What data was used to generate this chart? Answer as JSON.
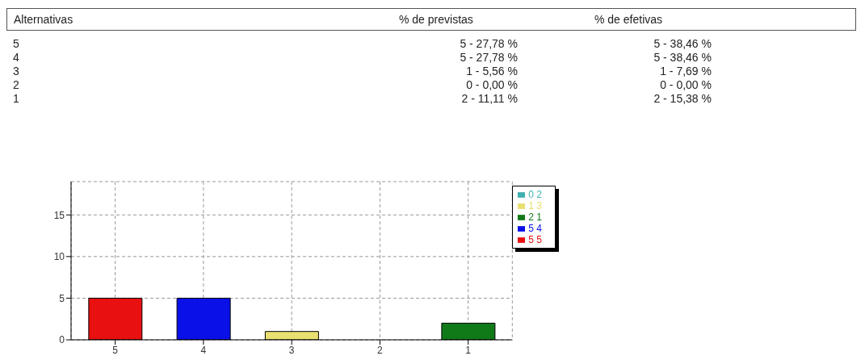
{
  "chart_data": {
    "type": "bar",
    "categories": [
      "5",
      "4",
      "3",
      "2",
      "1"
    ],
    "stacked": true,
    "series": [
      {
        "name": "5 5",
        "color": "#e81010",
        "values": [
          5,
          null,
          null,
          null,
          null
        ]
      },
      {
        "name": "5 4",
        "color": "#0a10e8",
        "values": [
          null,
          5,
          null,
          null,
          null
        ]
      },
      {
        "name": "1 3",
        "color": "#e8e070",
        "values": [
          null,
          null,
          1,
          null,
          null
        ]
      },
      {
        "name": "0 2",
        "color": "#40b0b0",
        "values": [
          null,
          null,
          null,
          0,
          null
        ]
      },
      {
        "name": "2 1",
        "color": "#107a18",
        "values": [
          null,
          null,
          null,
          null,
          2
        ]
      }
    ],
    "ylim": [
      0,
      19
    ],
    "yticks": [
      0,
      5,
      10,
      15
    ],
    "grid": true,
    "legend": "right",
    "annotations": [
      "Alternativas",
      "% de previstas",
      "% de efetivas",
      "5 - 27,78 %",
      "5 - 38,46 %",
      "5 - 27,78 %",
      "5 - 38,46 %",
      "1 - 5,56 %",
      "1 - 7,69 %",
      "0 - 0,00 %",
      "0 - 0,00 %",
      "2 - 11,11 %",
      "2 - 15,38 %"
    ]
  }
}
